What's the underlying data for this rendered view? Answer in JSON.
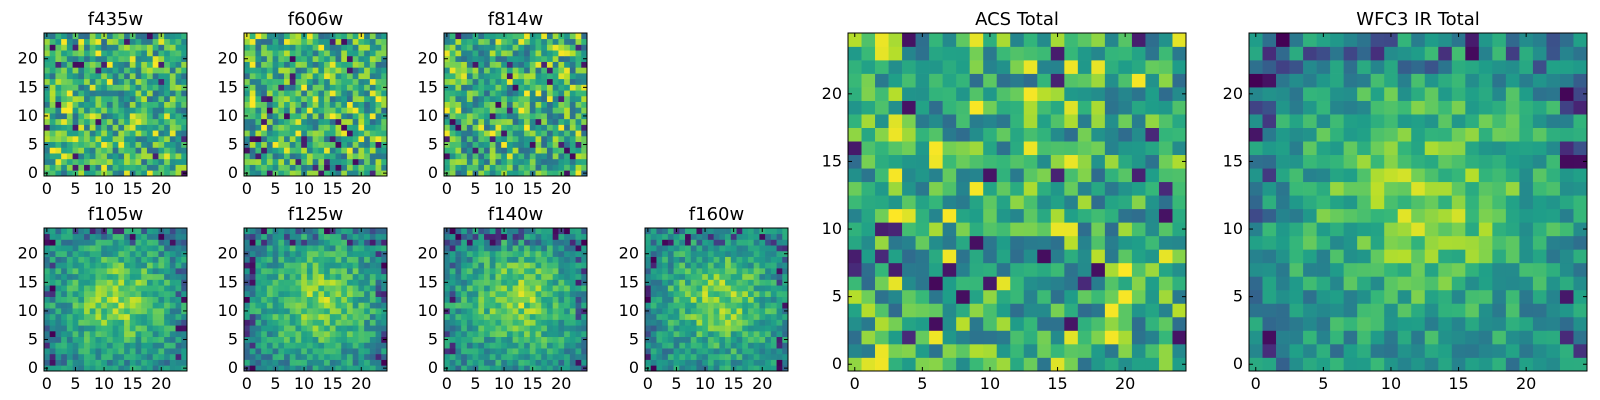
{
  "colormap": "viridis",
  "chart_data": [
    {
      "type": "heatmap",
      "title": "f435w",
      "xticks": [
        "0",
        "5",
        "10",
        "15",
        "20"
      ],
      "yticks": [
        "0",
        "5",
        "10",
        "15",
        "20"
      ],
      "grid_size": 25,
      "xlim": [
        -0.5,
        24.5
      ],
      "ylim": [
        -0.5,
        24.5
      ],
      "pattern": "noise"
    },
    {
      "type": "heatmap",
      "title": "f606w",
      "xticks": [
        "0",
        "5",
        "10",
        "15",
        "20"
      ],
      "yticks": [
        "0",
        "5",
        "10",
        "15",
        "20"
      ],
      "grid_size": 25,
      "xlim": [
        -0.5,
        24.5
      ],
      "ylim": [
        -0.5,
        24.5
      ],
      "pattern": "noise"
    },
    {
      "type": "heatmap",
      "title": "f814w",
      "xticks": [
        "0",
        "5",
        "10",
        "15",
        "20"
      ],
      "yticks": [
        "0",
        "5",
        "10",
        "15",
        "20"
      ],
      "grid_size": 25,
      "xlim": [
        -0.5,
        24.5
      ],
      "ylim": [
        -0.5,
        24.5
      ],
      "pattern": "noise"
    },
    {
      "type": "heatmap",
      "title": "f105w",
      "xticks": [
        "0",
        "5",
        "10",
        "15",
        "20"
      ],
      "yticks": [
        "0",
        "5",
        "10",
        "15",
        "20"
      ],
      "grid_size": 25,
      "xlim": [
        -0.5,
        24.5
      ],
      "ylim": [
        -0.5,
        24.5
      ],
      "pattern": "centered-source"
    },
    {
      "type": "heatmap",
      "title": "f125w",
      "xticks": [
        "0",
        "5",
        "10",
        "15",
        "20"
      ],
      "yticks": [
        "0",
        "5",
        "10",
        "15",
        "20"
      ],
      "grid_size": 25,
      "xlim": [
        -0.5,
        24.5
      ],
      "ylim": [
        -0.5,
        24.5
      ],
      "pattern": "centered-source"
    },
    {
      "type": "heatmap",
      "title": "f140w",
      "xticks": [
        "0",
        "5",
        "10",
        "15",
        "20"
      ],
      "yticks": [
        "0",
        "5",
        "10",
        "15",
        "20"
      ],
      "grid_size": 25,
      "xlim": [
        -0.5,
        24.5
      ],
      "ylim": [
        -0.5,
        24.5
      ],
      "pattern": "centered-source"
    },
    {
      "type": "heatmap",
      "title": "f160w",
      "xticks": [
        "0",
        "5",
        "10",
        "15",
        "20"
      ],
      "yticks": [
        "0",
        "5",
        "10",
        "15",
        "20"
      ],
      "grid_size": 25,
      "xlim": [
        -0.5,
        24.5
      ],
      "ylim": [
        -0.5,
        24.5
      ],
      "pattern": "centered-source"
    },
    {
      "type": "heatmap",
      "title": "ACS Total",
      "xticks": [
        "0",
        "5",
        "10",
        "15",
        "20"
      ],
      "yticks": [
        "0",
        "5",
        "10",
        "15",
        "20"
      ],
      "grid_size": 25,
      "xlim": [
        -0.5,
        24.5
      ],
      "ylim": [
        -0.5,
        24.5
      ],
      "pattern": "noise"
    },
    {
      "type": "heatmap",
      "title": "WFC3 IR Total",
      "xticks": [
        "0",
        "5",
        "10",
        "15",
        "20"
      ],
      "yticks": [
        "0",
        "5",
        "10",
        "15",
        "20"
      ],
      "grid_size": 25,
      "xlim": [
        -0.5,
        24.5
      ],
      "ylim": [
        -0.5,
        24.5
      ],
      "pattern": "centered-source"
    }
  ]
}
